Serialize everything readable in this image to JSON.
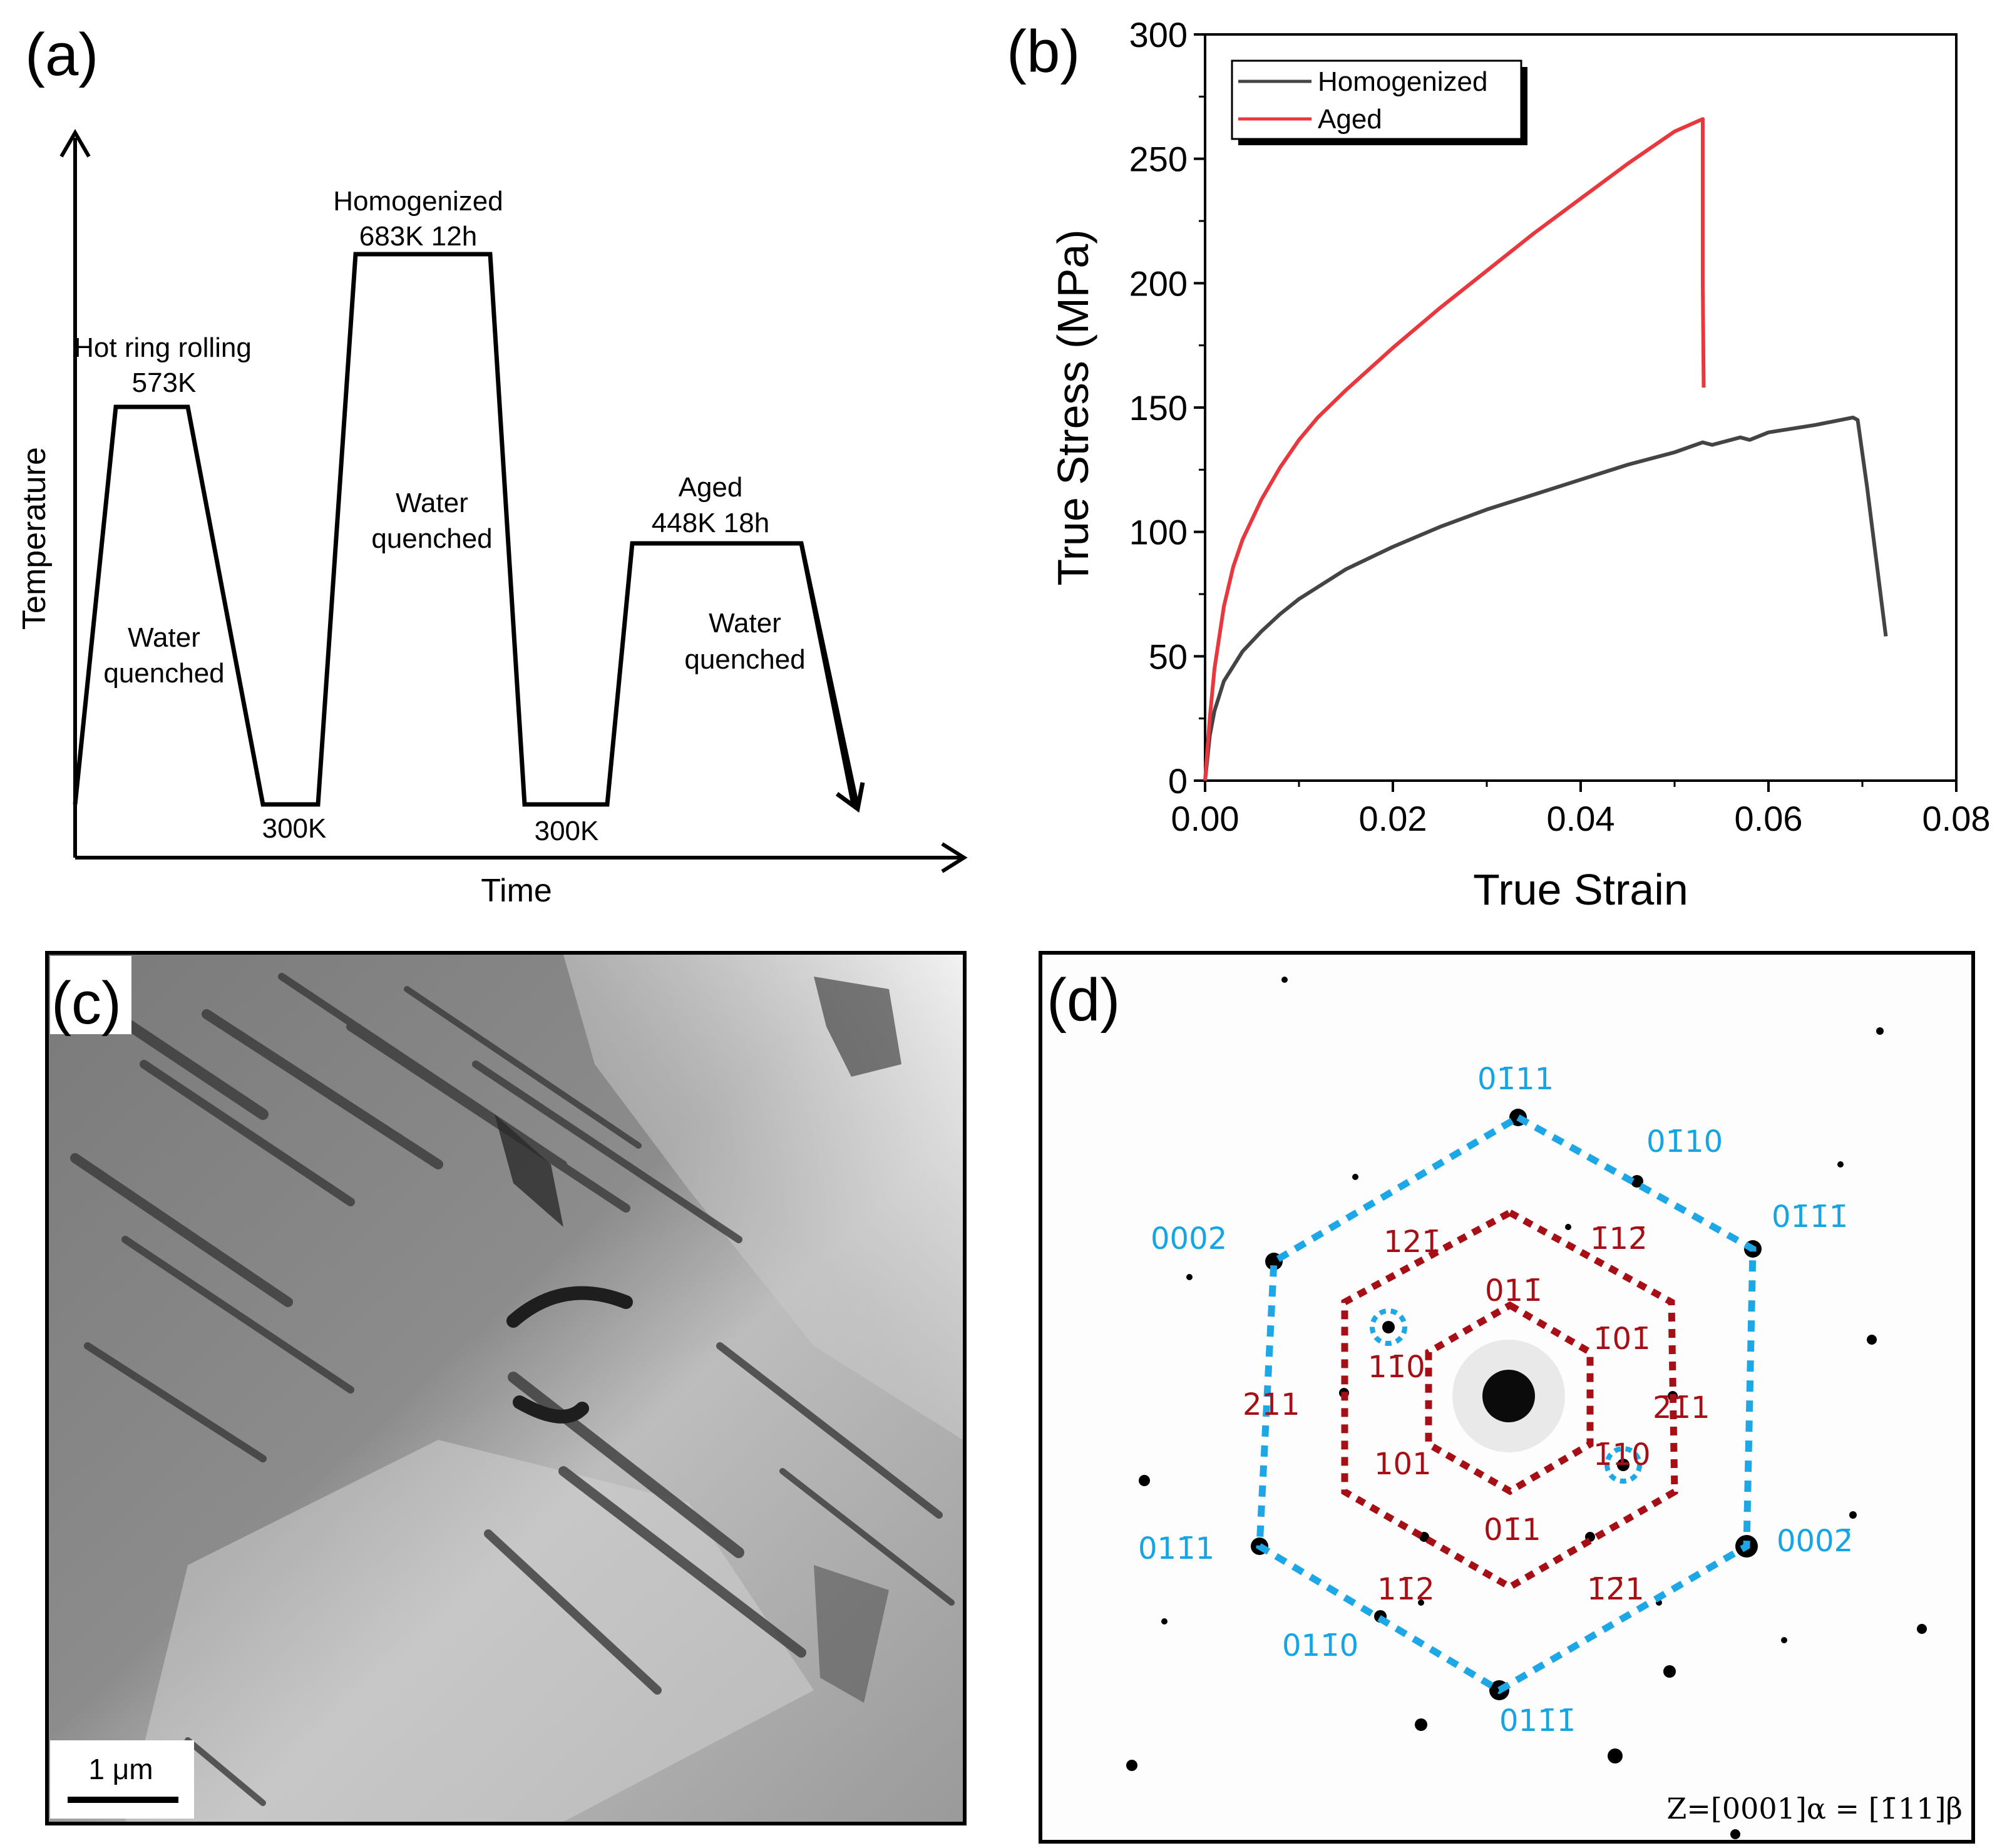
{
  "panels": {
    "a": {
      "label": "(a)",
      "xlabel": "Time",
      "ylabel": "Temperature",
      "annotations": {
        "hot_rolling_1": "Hot ring rolling",
        "hot_rolling_2": "573K",
        "homog_1": "Homogenized",
        "homog_2": "683K 12h",
        "aged_1": "Aged",
        "aged_2": "448K 18h",
        "wq1_1": "Water",
        "wq1_2": "quenched",
        "wq2_1": "Water",
        "wq2_2": "quenched",
        "wq3_1": "Water",
        "wq3_2": "quenched",
        "rt1": "300K",
        "rt2": "300K"
      }
    },
    "b": {
      "label": "(b)"
    },
    "c": {
      "label": "(c)",
      "scale_bar": "1 μm"
    },
    "d": {
      "label": "(d)",
      "zone_axis": "Z=[0001]α = [1̄11]β",
      "blue_indices": [
        "01̄11",
        "01̄10",
        "01̄1̄1̄",
        "0002",
        "0002̄",
        "011̄1",
        "011̄0",
        "011̄1̄"
      ],
      "red_indices": [
        "121̄",
        "1̄12̄",
        "011̄",
        "1̄01̄",
        "11̄0",
        "211",
        "2̄1̄1",
        "1̄10",
        "101",
        "01̄1",
        "11̄2",
        "1̄2̄1"
      ]
    }
  },
  "chart_data": {
    "type": "line",
    "title": "",
    "xlabel": "True Strain",
    "ylabel": "True Stress (MPa)",
    "xlim": [
      0,
      0.08
    ],
    "ylim": [
      0,
      300
    ],
    "xticks": [
      "0.00",
      "0.02",
      "0.04",
      "0.06",
      "0.08"
    ],
    "yticks": [
      "0",
      "50",
      "100",
      "150",
      "200",
      "250",
      "300"
    ],
    "legend": "top-left",
    "series": [
      {
        "name": "Homogenized",
        "color": "#444444",
        "x": [
          0,
          0.0005,
          0.001,
          0.002,
          0.004,
          0.006,
          0.008,
          0.01,
          0.015,
          0.02,
          0.025,
          0.03,
          0.035,
          0.04,
          0.045,
          0.05,
          0.053,
          0.054,
          0.057,
          0.058,
          0.06,
          0.065,
          0.069,
          0.0695,
          0.0705,
          0.0715,
          0.0725
        ],
        "y": [
          0,
          18,
          28,
          40,
          52,
          60,
          67,
          73,
          85,
          94,
          102,
          109,
          115,
          121,
          127,
          132,
          136,
          135,
          138,
          137,
          140,
          143,
          146,
          145,
          118,
          88,
          58
        ]
      },
      {
        "name": "Aged",
        "color": "#e8383d",
        "x": [
          0,
          0.0005,
          0.001,
          0.002,
          0.003,
          0.004,
          0.006,
          0.008,
          0.01,
          0.012,
          0.015,
          0.02,
          0.025,
          0.03,
          0.035,
          0.04,
          0.045,
          0.05,
          0.053,
          0.053,
          0.0531
        ],
        "y": [
          0,
          25,
          45,
          70,
          86,
          97,
          113,
          126,
          137,
          146,
          157,
          174,
          190,
          205,
          220,
          234,
          248,
          261,
          266,
          200,
          158
        ]
      }
    ]
  }
}
